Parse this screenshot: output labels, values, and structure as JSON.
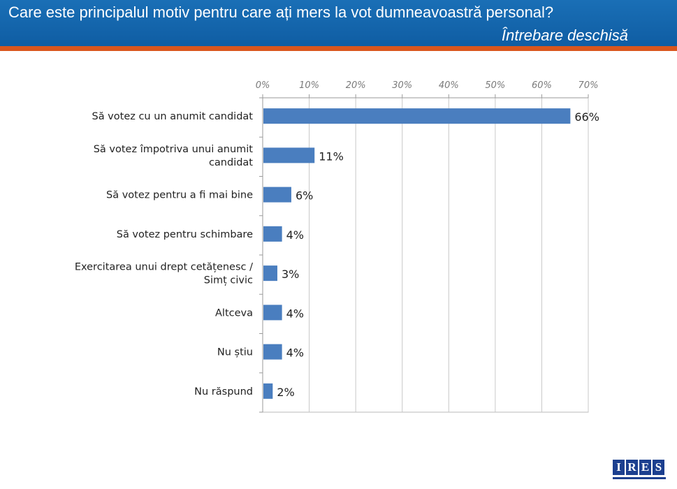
{
  "header": {
    "title": "Care este principalul motiv pentru care ați mers la vot dumneavoastră personal?",
    "subtitle": "Întrebare deschisă"
  },
  "colors": {
    "header_bg": "#1565ad",
    "accent_stripe": "#d9561d",
    "bar": "#4a7ebf"
  },
  "logo": {
    "letters": [
      "I",
      "R",
      "E",
      "S"
    ]
  },
  "chart_data": {
    "type": "bar",
    "orientation": "horizontal",
    "title": "",
    "xlabel": "",
    "ylabel": "",
    "xlim": [
      0,
      70
    ],
    "ticks": [
      "0%",
      "10%",
      "20%",
      "30%",
      "40%",
      "50%",
      "60%",
      "70%"
    ],
    "grid": true,
    "categories": [
      [
        "Să votez cu un anumit candidat"
      ],
      [
        "Să votez împotriva unui anumit",
        "candidat"
      ],
      [
        "Să votez pentru a fi mai bine"
      ],
      [
        "Să votez pentru schimbare"
      ],
      [
        "Exercitarea unui drept cetățenesc /",
        "Simț civic"
      ],
      [
        "Altceva"
      ],
      [
        "Nu știu"
      ],
      [
        "Nu răspund"
      ]
    ],
    "values": [
      66,
      11,
      6,
      4,
      3,
      4,
      4,
      2
    ],
    "labels": [
      "66%",
      "11%",
      "6%",
      "4%",
      "3%",
      "4%",
      "4%",
      "2%"
    ]
  }
}
